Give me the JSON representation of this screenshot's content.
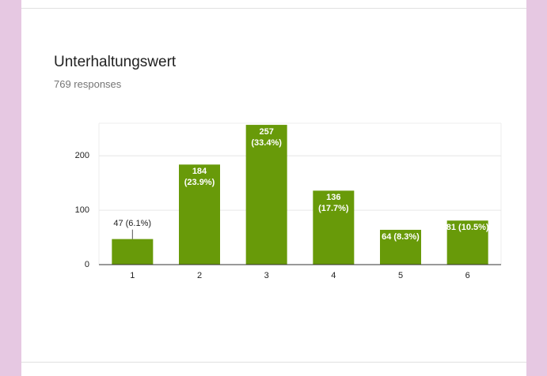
{
  "title": "Unterhaltungswert",
  "subtitle": "769 responses",
  "chart_data": {
    "type": "bar",
    "categories": [
      "1",
      "2",
      "3",
      "4",
      "5",
      "6"
    ],
    "values": [
      47,
      184,
      257,
      136,
      64,
      81
    ],
    "value_labels": [
      "47 (6.1%)",
      "184 (23.9%)",
      "257 (33.4%)",
      "136 (17.7%)",
      "64 (8.3%)",
      "81 (10.5%)"
    ],
    "color": "#689a09",
    "ylim": [
      0,
      260
    ],
    "yticks": [
      0,
      100,
      200
    ],
    "grid": true
  }
}
